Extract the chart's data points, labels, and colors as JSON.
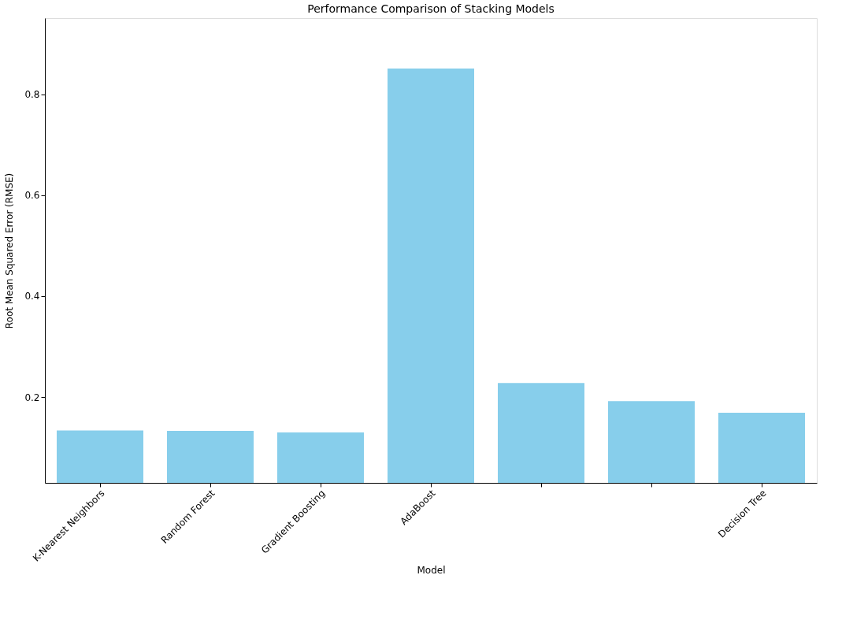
{
  "chart_data": {
    "type": "bar",
    "title": "Performance Comparison of Stacking Models",
    "xlabel": "Model",
    "ylabel": "Root Mean Squared Error (RMSE)",
    "categories": [
      "K-Nearest Neighbors",
      "Random Forest",
      "Gradient Boosting",
      "AdaBoost",
      null,
      null,
      "Decision Tree"
    ],
    "values": [
      0.134,
      0.133,
      0.13,
      0.851,
      0.228,
      0.192,
      0.169
    ],
    "color": "#87ceeb",
    "ylim": [
      0.03,
      0.951
    ],
    "yticks": [
      0.2,
      0.4,
      0.6,
      0.8
    ],
    "grid": false
  }
}
